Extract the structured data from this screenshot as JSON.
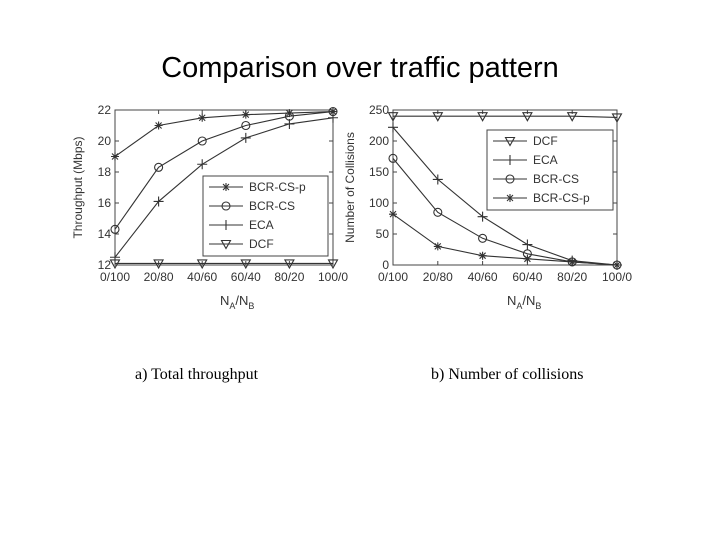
{
  "title": "Comparison over traffic pattern",
  "captions": {
    "a": "a) Total throughput",
    "b": "b) Number of collisions"
  },
  "chart_data": [
    {
      "type": "line",
      "categories": [
        "0/100",
        "20/80",
        "40/60",
        "60/40",
        "80/20",
        "100/0"
      ],
      "xlabel": {
        "base": "N",
        "sub1": "A",
        "mid": "/N",
        "sub2": "B"
      },
      "ylabel": "Throughput (Mbps)",
      "ylim": [
        12,
        22
      ],
      "yticks": [
        12,
        14,
        16,
        18,
        20,
        22
      ],
      "grid": false,
      "legend_position": "center-right",
      "series": [
        {
          "name": "BCR-CS-p",
          "marker": "star",
          "values": [
            19.0,
            21.0,
            21.5,
            21.7,
            21.8,
            21.9
          ]
        },
        {
          "name": "BCR-CS",
          "marker": "circle",
          "values": [
            14.3,
            18.3,
            20.0,
            21.0,
            21.6,
            21.9
          ]
        },
        {
          "name": "ECA",
          "marker": "plus",
          "values": [
            12.5,
            16.1,
            18.5,
            20.2,
            21.1,
            21.5
          ]
        },
        {
          "name": "DCF",
          "marker": "triangle",
          "values": [
            12.1,
            12.1,
            12.1,
            12.1,
            12.1,
            12.1
          ]
        }
      ]
    },
    {
      "type": "line",
      "categories": [
        "0/100",
        "20/80",
        "40/60",
        "60/40",
        "80/20",
        "100/0"
      ],
      "xlabel": {
        "base": "N",
        "sub1": "A",
        "mid": "/N",
        "sub2": "B"
      },
      "ylabel": "Number of Collisions",
      "ylim": [
        0,
        250
      ],
      "yticks": [
        0,
        50,
        100,
        150,
        200,
        250
      ],
      "grid": false,
      "legend_position": "top-right",
      "series": [
        {
          "name": "DCF",
          "marker": "triangle",
          "values": [
            240,
            240,
            240,
            240,
            240,
            238
          ]
        },
        {
          "name": "ECA",
          "marker": "plus",
          "values": [
            222,
            138,
            78,
            33,
            7,
            0
          ]
        },
        {
          "name": "BCR-CS",
          "marker": "circle",
          "values": [
            172,
            85,
            43,
            18,
            5,
            0
          ]
        },
        {
          "name": "BCR-CS-p",
          "marker": "star",
          "values": [
            82,
            30,
            15,
            10,
            5,
            0
          ]
        }
      ]
    }
  ]
}
